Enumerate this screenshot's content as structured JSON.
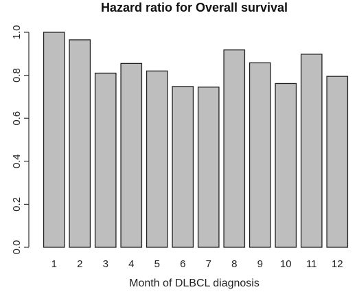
{
  "chart_data": {
    "type": "bar",
    "title": "Hazard ratio for Overall survival",
    "xlabel": "Month of DLBCL diagnosis",
    "ylabel": "",
    "categories": [
      "1",
      "2",
      "3",
      "4",
      "5",
      "6",
      "7",
      "8",
      "9",
      "10",
      "11",
      "12"
    ],
    "values": [
      1.0,
      0.965,
      0.81,
      0.855,
      0.82,
      0.748,
      0.745,
      0.918,
      0.858,
      0.762,
      0.898,
      0.795
    ],
    "ylim": [
      0,
      1.0
    ],
    "yticks": [
      "0.0",
      "0.2",
      "0.4",
      "0.6",
      "0.8",
      "1.0"
    ],
    "grid": false,
    "legend": "none",
    "colors": {
      "bar_fill": "#bebebe",
      "bar_stroke": "#222222"
    }
  }
}
